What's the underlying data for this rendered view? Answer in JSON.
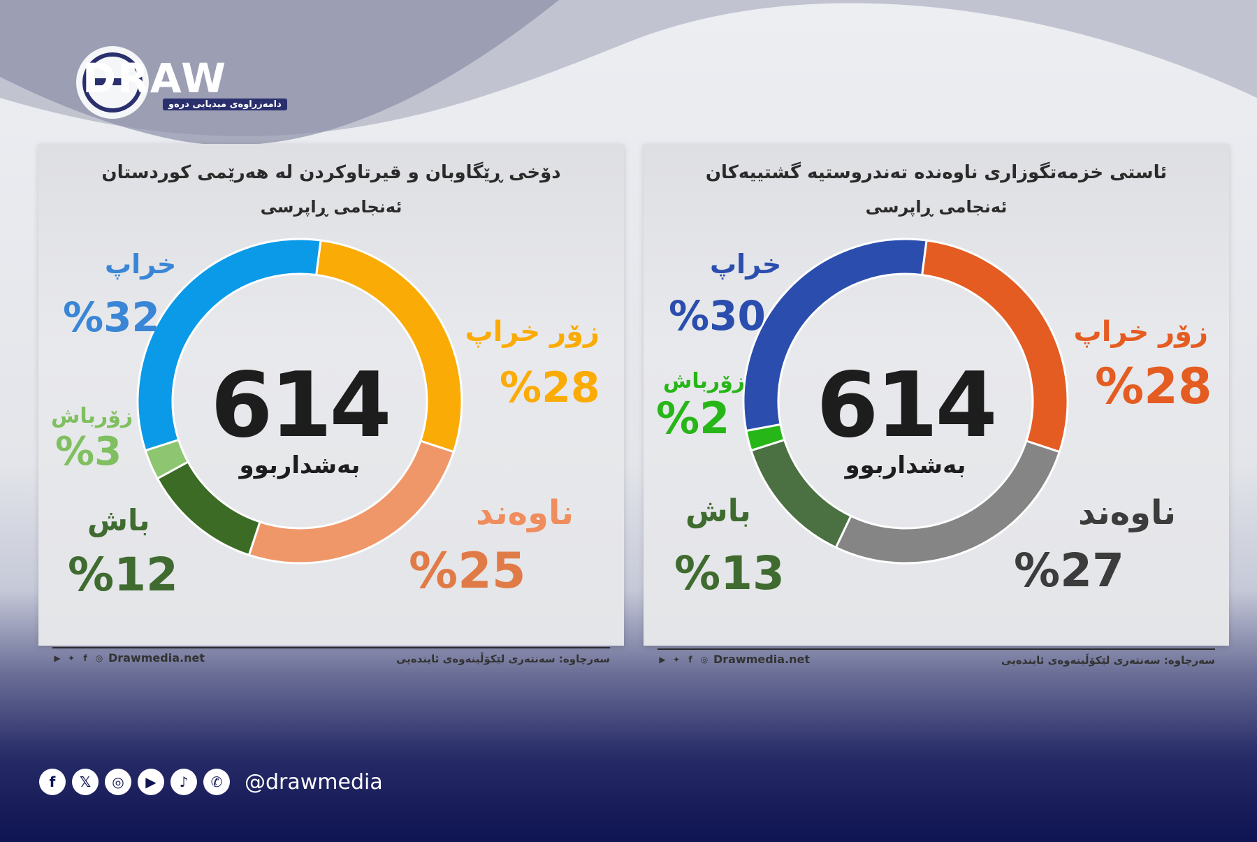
{
  "brand": {
    "logo_text": "DRAW",
    "logo_sub": "دامەزراوەی میدیایی درەو",
    "handle": "@drawmedia"
  },
  "social_icons": [
    "facebook-icon",
    "x-icon",
    "instagram-icon",
    "youtube-icon",
    "tiktok-icon",
    "whatsapp-icon"
  ],
  "cards": [
    {
      "title": "دۆخی ڕێگاوبان و قیرتاوکردن لە هەرێمی کوردستان",
      "subtitle": "ئەنجامی ڕاپرسی",
      "center_value": "614",
      "center_label": "بەشداربوو",
      "footer_site": "Drawmedia.net",
      "footer_source": "سەرچاوە: سەنتەری لێکۆڵینەوەی ئایندەیی",
      "labels": {
        "very_bad": "زۆر خراپ",
        "very_bad_pct": "%28",
        "medium": "ناوەند",
        "medium_pct": "%25",
        "good": "باش",
        "good_pct": "%12",
        "very_good": "زۆرباش",
        "very_good_pct": "%3",
        "bad": "خراپ",
        "bad_pct": "%32"
      }
    },
    {
      "title": "ئاستی خزمەتگوزاری ناوەندە تەندروستیە گشتییەکان",
      "subtitle": "ئەنجامی ڕاپرسی",
      "center_value": "614",
      "center_label": "بەشداربوو",
      "footer_site": "Drawmedia.net",
      "footer_source": "سەرچاوە: سەنتەری لێکۆڵینەوەی ئایندەیی",
      "labels": {
        "very_bad": "زۆر خراپ",
        "very_bad_pct": "%28",
        "medium": "ناوەند",
        "medium_pct": "%27",
        "good": "باش",
        "good_pct": "%13",
        "very_good": "زۆرباش",
        "very_good_pct": "%2",
        "bad": "خراپ",
        "bad_pct": "%30"
      }
    }
  ],
  "chart_data": [
    {
      "type": "pie",
      "title": "دۆخی ڕێگاوبان و قیرتاوکردن لە هەرێمی کوردستان",
      "subtitle": "ئەنجامی ڕاپرسی",
      "total": 614,
      "categories": [
        "زۆر خراپ",
        "ناوەند",
        "باش",
        "زۆرباش",
        "خراپ"
      ],
      "values": [
        28,
        25,
        12,
        3,
        32
      ],
      "colors": [
        "#fbab05",
        "#f0976a",
        "#3b6b24",
        "#8dc570",
        "#0b9ae8"
      ]
    },
    {
      "type": "pie",
      "title": "ئاستی خزمەتگوزاری ناوەندە تەندروستیە گشتییەکان",
      "subtitle": "ئەنجامی ڕاپرسی",
      "total": 614,
      "categories": [
        "زۆر خراپ",
        "ناوەند",
        "باش",
        "زۆرباش",
        "خراپ"
      ],
      "values": [
        28,
        27,
        13,
        2,
        30
      ],
      "colors": [
        "#e45c22",
        "#858585",
        "#4b7042",
        "#27b618",
        "#2b4eae"
      ]
    }
  ]
}
